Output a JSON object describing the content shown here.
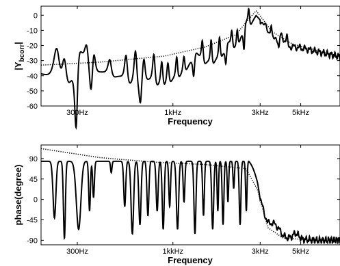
{
  "chart_data": [
    {
      "type": "line",
      "xlabel": "Frequency",
      "ylabel_main": "|Y",
      "ylabel_sub": "bcorr",
      "ylabel_end": "|",
      "x_scale": "log",
      "xlim": [
        190,
        8200
      ],
      "ylim": [
        -60,
        6
      ],
      "y_ticks": [
        -60,
        -50,
        -40,
        -30,
        -20,
        -10,
        0
      ],
      "x_ticks": [
        {
          "value": 300,
          "label": "300Hz"
        },
        {
          "value": 1000,
          "label": "1kHz"
        },
        {
          "value": 3000,
          "label": "3kHz"
        },
        {
          "value": 5000,
          "label": "5kHz"
        }
      ],
      "series": [
        {
          "style": "solid",
          "resonances": [
            {
              "f": 232,
              "a": 13,
              "q": 30
            },
            {
              "f": 255,
              "a": 11,
              "q": 40
            },
            {
              "f": 296,
              "a": -26,
              "q": 60
            },
            {
              "f": 338,
              "a": 8,
              "q": 45
            },
            {
              "f": 357,
              "a": -10,
              "q": 60
            },
            {
              "f": 370,
              "a": 6,
              "q": 60
            },
            {
              "f": 452,
              "a": 6,
              "q": 50
            },
            {
              "f": 555,
              "a": 10,
              "q": 60
            },
            {
              "f": 625,
              "a": 13,
              "q": 60
            },
            {
              "f": 665,
              "a": -9,
              "q": 70
            },
            {
              "f": 695,
              "a": 7,
              "q": 70
            },
            {
              "f": 788,
              "a": 11,
              "q": 70
            },
            {
              "f": 870,
              "a": 9,
              "q": 80
            },
            {
              "f": 940,
              "a": 8,
              "q": 80
            },
            {
              "f": 1050,
              "a": 8,
              "q": 90
            },
            {
              "f": 1150,
              "a": 6,
              "q": 90
            },
            {
              "f": 1300,
              "a": -8,
              "q": 90
            },
            {
              "f": 1450,
              "a": 8,
              "q": 90
            },
            {
              "f": 1620,
              "a": 9,
              "q": 100
            },
            {
              "f": 1800,
              "a": 8,
              "q": 100
            },
            {
              "f": 1950,
              "a": -7,
              "q": 100
            },
            {
              "f": 2100,
              "a": 6,
              "q": 100
            },
            {
              "f": 2250,
              "a": 6,
              "q": 110
            },
            {
              "f": 2450,
              "a": -9,
              "q": 110
            },
            {
              "f": 2600,
              "a": 6,
              "q": 110
            },
            {
              "f": 3450,
              "a": 5,
              "q": 120
            },
            {
              "f": 3800,
              "a": -5,
              "q": 120
            },
            {
              "f": 4200,
              "a": 3,
              "q": 120
            }
          ]
        },
        {
          "style": "dotted",
          "values_x": [
            190,
            400,
            900,
            1500,
            2200,
            2850,
            3500,
            4500,
            6000,
            8200
          ],
          "values_y": [
            -33,
            -31,
            -27,
            -21,
            -13,
            3,
            -11,
            -19,
            -23,
            -27
          ]
        }
      ]
    },
    {
      "type": "line",
      "xlabel": "Frequency",
      "ylabel": "phase(degree)",
      "x_scale": "log",
      "xlim": [
        190,
        8200
      ],
      "ylim": [
        -100,
        120
      ],
      "y_ticks": [
        -90,
        -45,
        0,
        45,
        90
      ],
      "x_ticks": [
        {
          "value": 300,
          "label": "300Hz"
        },
        {
          "value": 1000,
          "label": "1kkHz"
        },
        {
          "value": 3000,
          "label": "3kHz"
        },
        {
          "value": 5000,
          "label": "5kHz"
        }
      ],
      "series": [
        {
          "style": "solid",
          "dips": [
            {
              "f": 225,
              "d": 125,
              "w": 10
            },
            {
              "f": 255,
              "d": 170,
              "w": 7
            },
            {
              "f": 305,
              "d": 150,
              "w": 16
            },
            {
              "f": 350,
              "d": 110,
              "w": 6
            },
            {
              "f": 368,
              "d": 80,
              "w": 6
            },
            {
              "f": 460,
              "d": 25,
              "w": 5
            },
            {
              "f": 545,
              "d": 100,
              "w": 7
            },
            {
              "f": 600,
              "d": 160,
              "w": 9
            },
            {
              "f": 660,
              "d": 140,
              "w": 8
            },
            {
              "f": 730,
              "d": 120,
              "w": 7
            },
            {
              "f": 820,
              "d": 110,
              "w": 7
            },
            {
              "f": 885,
              "d": 150,
              "w": 7
            },
            {
              "f": 960,
              "d": 100,
              "w": 6
            },
            {
              "f": 1060,
              "d": 150,
              "w": 8
            },
            {
              "f": 1150,
              "d": 90,
              "w": 6
            },
            {
              "f": 1320,
              "d": 160,
              "w": 7
            },
            {
              "f": 1470,
              "d": 120,
              "w": 6
            },
            {
              "f": 1650,
              "d": 150,
              "w": 7
            },
            {
              "f": 1760,
              "d": 110,
              "w": 5
            },
            {
              "f": 1880,
              "d": 140,
              "w": 6
            },
            {
              "f": 2000,
              "d": 90,
              "w": 5
            },
            {
              "f": 2150,
              "d": 60,
              "w": 5
            },
            {
              "f": 2330,
              "d": 140,
              "w": 6
            },
            {
              "f": 2520,
              "d": 110,
              "w": 5
            }
          ]
        },
        {
          "style": "dotted",
          "values_x": [
            190,
            400,
            800,
            1500,
            2500,
            2900,
            3300,
            4000,
            6000,
            8200
          ],
          "values_y": [
            112,
            92,
            82,
            77,
            68,
            22,
            -62,
            -85,
            -90,
            -90
          ]
        }
      ]
    }
  ]
}
